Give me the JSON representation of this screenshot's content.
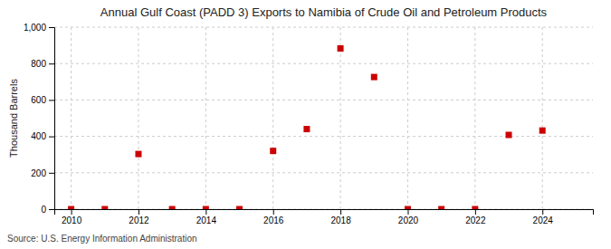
{
  "chart_data": {
    "type": "scatter",
    "title": "Annual Gulf Coast (PADD 3) Exports to Namibia of Crude Oil and Petroleum Products",
    "ylabel": "Thousand Barrels",
    "annotations": [
      "Source: U.S. Energy Information Administration"
    ],
    "x": [
      2010,
      2011,
      2012,
      2013,
      2014,
      2015,
      2016,
      2017,
      2018,
      2019,
      2020,
      2021,
      2022,
      2023,
      2024
    ],
    "values": [
      0,
      0,
      303,
      0,
      0,
      0,
      320,
      440,
      883,
      726,
      0,
      0,
      0,
      408,
      432
    ],
    "color": "#cc0000",
    "marker": "square",
    "xlim": [
      2009.5,
      2025.5
    ],
    "xticks": [
      2010,
      2012,
      2014,
      2016,
      2018,
      2020,
      2022,
      2024
    ],
    "ylim": [
      0,
      1000
    ],
    "yticks": [
      0,
      200,
      400,
      600,
      800,
      {
        "value": 1000,
        "label": "1,000"
      }
    ],
    "grid": true
  }
}
